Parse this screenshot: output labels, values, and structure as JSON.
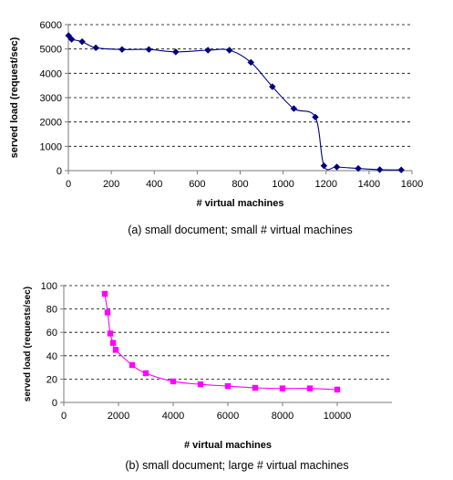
{
  "chart_data": [
    {
      "type": "line",
      "xlabel": "# virtual machines",
      "ylabel": "served load (request/sec)",
      "caption": "(a) small document; small # virtual machines",
      "xlim": [
        0,
        1600
      ],
      "ylim": [
        0,
        6000
      ],
      "x_ticks": [
        0,
        200,
        400,
        600,
        800,
        1000,
        1200,
        1400,
        1600
      ],
      "y_ticks": [
        0,
        1000,
        2000,
        3000,
        4000,
        5000,
        6000
      ],
      "grid": "horizontal dashed",
      "legend": "none",
      "series": [
        {
          "marker": "diamond",
          "color": "#000080",
          "x": [
            1,
            15,
            64,
            128,
            250,
            375,
            500,
            650,
            750,
            850,
            950,
            1050,
            1150,
            1190,
            1250,
            1350,
            1450,
            1550
          ],
          "y": [
            5550,
            5400,
            5300,
            5050,
            4980,
            4980,
            4880,
            4950,
            4950,
            4450,
            3450,
            2550,
            2200,
            200,
            150,
            90,
            40,
            30
          ]
        }
      ]
    },
    {
      "type": "line",
      "xlabel": "# virtual machines",
      "ylabel": "served load (requests/sec)",
      "caption": "(b) small document; large # virtual machines",
      "xlim": [
        0,
        12000
      ],
      "ylim": [
        0,
        100
      ],
      "x_ticks": [
        0,
        2000,
        4000,
        6000,
        8000,
        10000
      ],
      "y_ticks": [
        0,
        20,
        40,
        60,
        80,
        100
      ],
      "grid": "horizontal dashed",
      "legend": "none",
      "series": [
        {
          "marker": "square",
          "color": "#ff00ff",
          "x": [
            1500,
            1600,
            1700,
            1800,
            1900,
            2500,
            3000,
            4000,
            5000,
            6000,
            7000,
            8000,
            9000,
            10000
          ],
          "y": [
            93,
            77,
            59,
            51,
            45,
            32,
            25,
            18,
            15.5,
            14,
            12.5,
            12,
            12,
            11
          ]
        }
      ]
    }
  ]
}
